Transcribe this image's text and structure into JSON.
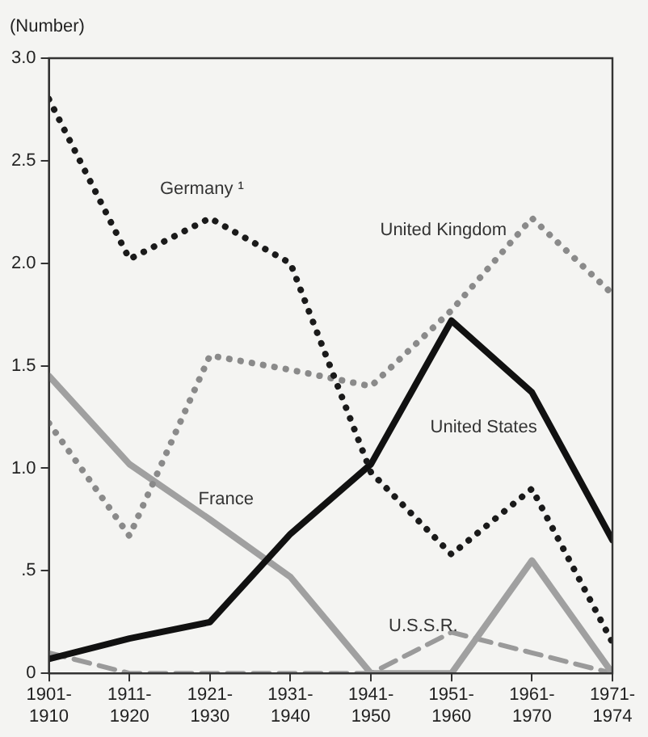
{
  "chart_data": {
    "type": "line",
    "ylabel": "(Number)",
    "categories": [
      "1901-1910",
      "1911-1920",
      "1921-1930",
      "1931-1940",
      "1941-1950",
      "1951-1960",
      "1961-1970",
      "1971-1974"
    ],
    "ylim": [
      0,
      3
    ],
    "yticks": [
      0,
      {
        "value": 0.5,
        "label": ".5"
      },
      {
        "value": 1,
        "label": "1.0"
      },
      {
        "value": 1.5,
        "label": "1.5"
      },
      {
        "value": 2,
        "label": "2.0"
      },
      {
        "value": 2.5,
        "label": "2.5"
      },
      {
        "value": 3,
        "label": "3.0"
      }
    ],
    "grid": false,
    "legend": false,
    "marker": "none",
    "series": [
      {
        "name": "Germany ¹",
        "color": "#1a1a1a",
        "line_style": "dotted",
        "values": [
          2.8,
          2.02,
          2.22,
          2.0,
          0.98,
          0.58,
          0.9,
          0.15
        ]
      },
      {
        "name": "United Kingdom",
        "color": "#8a8a8a",
        "line_style": "dotted",
        "values": [
          1.22,
          0.67,
          1.55,
          1.48,
          1.4,
          1.77,
          2.22,
          1.85
        ]
      },
      {
        "name": "United States",
        "color": "#111111",
        "line_style": "solid",
        "values": [
          0.07,
          0.17,
          0.25,
          0.68,
          1.02,
          1.72,
          1.37,
          0.65
        ]
      },
      {
        "name": "France",
        "color": "#a0a0a0",
        "line_style": "solid",
        "values": [
          1.45,
          1.02,
          0.75,
          0.47,
          0,
          0,
          0.55,
          0
        ]
      },
      {
        "name": "U.S.S.R.",
        "color": "#9a9a9a",
        "line_style": "dashed",
        "values": [
          0.1,
          0,
          0,
          0,
          0,
          0.2,
          0.1,
          0
        ]
      }
    ]
  }
}
